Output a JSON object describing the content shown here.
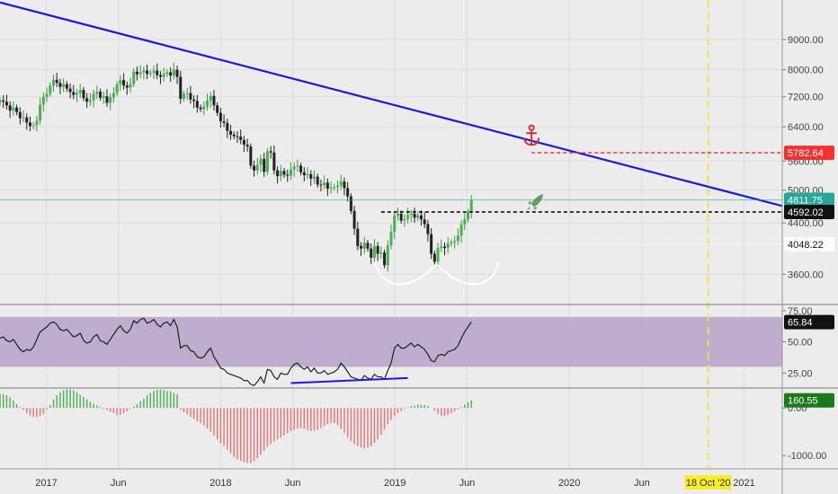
{
  "chart_data": [
    {
      "type": "candlestick",
      "panel": "price",
      "y_ticks": [
        "9000.00",
        "8000.00",
        "7200.00",
        "6400.00",
        "5600.00",
        "5000.00",
        "4400.00",
        "3600.00"
      ],
      "y_tick_values": [
        9000,
        8000,
        7200,
        6400,
        5600,
        5000,
        4400,
        3600
      ],
      "scale": "log",
      "ylim": [
        3200,
        10500
      ],
      "x_ticks": [
        "2017",
        "Jun",
        "2018",
        "Jun",
        "2019",
        "Jun",
        "2020",
        "Jun",
        "2021"
      ],
      "x_tick_values": [
        "2017-01-01",
        "2017-06-01",
        "2018-01-01",
        "2018-06-01",
        "2019-01-01",
        "2019-06-01",
        "2020-01-01",
        "2020-06-01",
        "2021-01-01"
      ],
      "xlim": [
        "2016-09-26",
        "2021-03-22"
      ],
      "closes": [
        7100,
        7060,
        6960,
        6820,
        6900,
        6780,
        6620,
        6640,
        6510,
        6420,
        6440,
        6560,
        6980,
        7200,
        7280,
        7520,
        7690,
        7600,
        7480,
        7560,
        7430,
        7330,
        7250,
        7300,
        7390,
        7160,
        7060,
        7100,
        7280,
        7340,
        7170,
        7210,
        7030,
        7180,
        7300,
        7550,
        7680,
        7520,
        7460,
        7570,
        7940,
        7860,
        7920,
        7970,
        7870,
        7900,
        7970,
        7830,
        7780,
        7870,
        7920,
        7820,
        8000,
        7780,
        7140,
        7280,
        7300,
        7120,
        7080,
        6900,
        6860,
        6930,
        7090,
        7220,
        6960,
        6760,
        6540,
        6500,
        6300,
        6210,
        6170,
        6160,
        6080,
        5970,
        5930,
        5500,
        5400,
        5520,
        5650,
        5370,
        5820,
        5790,
        5400,
        5280,
        5390,
        5310,
        5290,
        5420,
        5480,
        5500,
        5360,
        5300,
        5320,
        5230,
        5270,
        5110,
        5100,
        5150,
        5030,
        5050,
        5060,
        5090,
        5170,
        5040,
        4880,
        4610,
        4300,
        4020,
        3980,
        4070,
        3980,
        3840,
        4020,
        3900,
        3920,
        3730,
        4030,
        4250,
        4530,
        4560,
        4440,
        4460,
        4540,
        4560,
        4490,
        4530,
        4460,
        4380,
        4210,
        3900,
        3780,
        3990,
        4010,
        3990,
        4060,
        4080,
        4100,
        4190,
        4370,
        4460,
        4590,
        4812
      ],
      "start_date": "2016-09-26",
      "interval": "weekly",
      "trendline": {
        "from": [
          "2016-09-26",
          10400
        ],
        "to": [
          "2021-03-22",
          4700
        ],
        "color": "#1a1ad8"
      },
      "events": [
        {
          "date": "2020-10-18",
          "label": "18 Oct '20"
        }
      ],
      "annotations": [
        {
          "kind": "anchor-icon",
          "date": "2019-10-14",
          "value": 6180,
          "color": "#d43030"
        },
        {
          "kind": "rocket-icon",
          "date": "2019-10-21",
          "value": 4770,
          "color": "#3f8f3f"
        },
        {
          "kind": "double-bottom-curve",
          "from": "2018-11-19",
          "to": "2019-08-05",
          "color": "#ffffff"
        }
      ],
      "price_lines": [
        {
          "value": 5782.64,
          "label": "5782.64",
          "style": "dashed",
          "color": "#f33333",
          "from": "2019-10-14"
        },
        {
          "value": 4811.75,
          "label": "4811.75",
          "style": "solid",
          "color": "#26a69a"
        },
        {
          "value": 4592.02,
          "label": "4592.02",
          "style": "dashed",
          "color": "#000000",
          "from": "2018-12-03"
        },
        {
          "value": 4048.22,
          "label": "4048.22",
          "style": "dotted",
          "color": "#ffffff",
          "from": "2019-06-24"
        }
      ]
    },
    {
      "type": "line",
      "panel": "rsi",
      "y_ticks": [
        "75.00",
        "50.00",
        "25.00"
      ],
      "y_tick_values": [
        75,
        50,
        25
      ],
      "ylim": [
        13,
        80
      ],
      "band": [
        30,
        70
      ],
      "band_color": "#b7a2c9",
      "current_value_label": "65.84",
      "current_value": 65.84,
      "values": [
        53,
        54,
        51,
        50,
        52,
        48,
        44,
        42,
        44,
        43,
        46,
        52,
        58,
        60,
        62,
        65,
        66,
        64,
        60,
        59,
        60,
        57,
        54,
        55,
        57,
        51,
        49,
        50,
        54,
        56,
        51,
        50,
        48,
        52,
        56,
        60,
        63,
        59,
        57,
        60,
        67,
        65,
        68,
        69,
        65,
        66,
        68,
        64,
        62,
        65,
        66,
        63,
        68,
        62,
        45,
        47,
        47,
        43,
        42,
        38,
        37,
        38,
        42,
        45,
        38,
        34,
        29,
        28,
        25,
        24,
        23,
        22,
        21,
        19,
        19,
        16,
        15,
        18,
        22,
        17,
        28,
        27,
        22,
        20,
        25,
        24,
        24,
        29,
        32,
        33,
        30,
        28,
        30,
        26,
        29,
        25,
        25,
        27,
        24,
        25,
        26,
        28,
        33,
        30,
        26,
        22,
        21,
        20,
        19,
        23,
        21,
        20,
        24,
        22,
        22,
        20,
        27,
        33,
        45,
        48,
        45,
        45,
        47,
        49,
        46,
        48,
        46,
        44,
        40,
        35,
        34,
        39,
        40,
        39,
        42,
        43,
        44,
        47,
        53,
        58,
        62,
        66
      ],
      "divergence_line": {
        "from": [
          "2018-05-28",
          17
        ],
        "to": [
          "2019-01-28",
          21
        ],
        "color": "#1a1ad8"
      }
    },
    {
      "type": "bar",
      "panel": "histogram",
      "y_ticks": [
        "0.00",
        "-1000.00"
      ],
      "y_tick_values": [
        0,
        -1000
      ],
      "ylim": [
        -1280,
        420
      ],
      "current_value_label": "160.55",
      "current_value": 160.55,
      "values": [
        300,
        290,
        270,
        230,
        160,
        80,
        20,
        -40,
        -110,
        -160,
        -190,
        -190,
        -170,
        -130,
        -40,
        60,
        180,
        270,
        330,
        370,
        390,
        390,
        370,
        330,
        280,
        230,
        180,
        130,
        90,
        50,
        20,
        -20,
        -50,
        -80,
        -110,
        -150,
        -140,
        -110,
        -70,
        -20,
        30,
        80,
        140,
        200,
        270,
        320,
        360,
        380,
        390,
        380,
        360,
        350,
        320,
        290,
        -40,
        -90,
        -140,
        -190,
        -230,
        -280,
        -320,
        -370,
        -430,
        -500,
        -580,
        -660,
        -740,
        -800,
        -880,
        -950,
        -1030,
        -1080,
        -1110,
        -1140,
        -1160,
        -1160,
        -1120,
        -1060,
        -980,
        -900,
        -820,
        -760,
        -700,
        -660,
        -620,
        -580,
        -530,
        -490,
        -460,
        -430,
        -420,
        -440,
        -470,
        -490,
        -480,
        -460,
        -420,
        -380,
        -340,
        -320,
        -320,
        -360,
        -440,
        -530,
        -620,
        -700,
        -760,
        -800,
        -830,
        -850,
        -830,
        -800,
        -740,
        -660,
        -560,
        -450,
        -340,
        -250,
        -170,
        -110,
        -60,
        -20,
        10,
        40,
        50,
        70,
        70,
        60,
        40,
        0,
        -60,
        -120,
        -160,
        -170,
        -150,
        -110,
        -70,
        -30,
        20,
        70,
        120,
        160
      ],
      "up_color": "#4caf50",
      "down_color": "#e57373"
    }
  ]
}
